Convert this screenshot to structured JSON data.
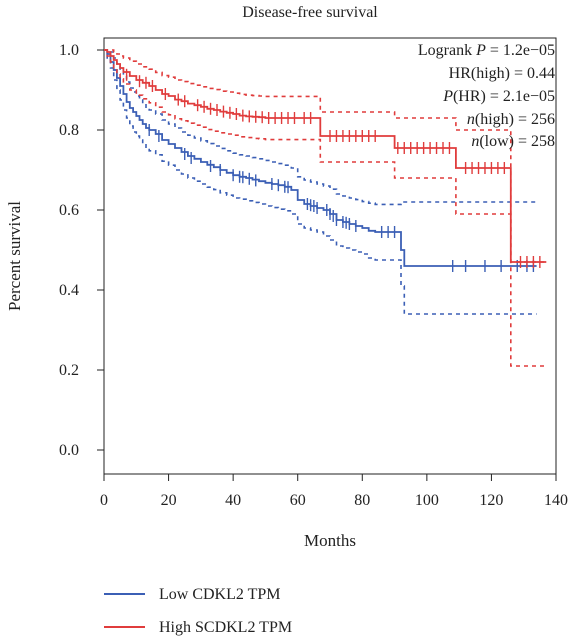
{
  "chart_data": {
    "type": "line",
    "title": "Disease-free survival",
    "xlabel": "Months",
    "ylabel": "Percent survival",
    "xlim": [
      0,
      140
    ],
    "ylim": [
      0,
      1
    ],
    "xticks": [
      "0",
      "20",
      "40",
      "60",
      "80",
      "100",
      "120",
      "140"
    ],
    "yticks": [
      "0.0",
      "0.2",
      "0.4",
      "0.6",
      "0.8",
      "1.0"
    ],
    "grid": false,
    "legend_position": "bottom-left",
    "stats": {
      "logrank_prefix": "Logrank ",
      "logrank_p_symbol": "P",
      "logrank_value": " = 1.2e−05",
      "hr_label": "HR(high) = 0.44",
      "phr_symbol": "P",
      "phr_value": "(HR) = 2.1e−05",
      "n_symbol": "n",
      "n_high_value": "(high) = 256",
      "n_low_value": "(low) = 258"
    },
    "series": [
      {
        "name": "Low CDKL2 TPM",
        "color": "#3b5fb5",
        "x": [
          0,
          1,
          2,
          3,
          4,
          5,
          6,
          7,
          8,
          9,
          10,
          11,
          12,
          13,
          14,
          16,
          18,
          20,
          22,
          24,
          26,
          28,
          30,
          32,
          34,
          36,
          38,
          40,
          42,
          44,
          46,
          48,
          50,
          52,
          54,
          56,
          58,
          60,
          62,
          64,
          66,
          68,
          70,
          72,
          74,
          76,
          78,
          80,
          82,
          84,
          86,
          88,
          90,
          92,
          93,
          100,
          110,
          120,
          130,
          134
        ],
        "y": [
          1.0,
          0.99,
          0.97,
          0.95,
          0.93,
          0.91,
          0.89,
          0.87,
          0.855,
          0.845,
          0.835,
          0.825,
          0.815,
          0.805,
          0.8,
          0.79,
          0.775,
          0.765,
          0.755,
          0.745,
          0.735,
          0.728,
          0.72,
          0.713,
          0.707,
          0.7,
          0.693,
          0.687,
          0.683,
          0.68,
          0.676,
          0.672,
          0.668,
          0.665,
          0.662,
          0.658,
          0.65,
          0.625,
          0.615,
          0.61,
          0.605,
          0.6,
          0.59,
          0.575,
          0.57,
          0.565,
          0.56,
          0.555,
          0.548,
          0.545,
          0.545,
          0.545,
          0.545,
          0.5,
          0.46,
          0.46,
          0.46,
          0.46,
          0.46,
          0.46
        ],
        "ci_upper": [
          1.0,
          1.0,
          0.995,
          0.98,
          0.965,
          0.95,
          0.935,
          0.92,
          0.905,
          0.895,
          0.885,
          0.875,
          0.865,
          0.857,
          0.85,
          0.84,
          0.825,
          0.815,
          0.805,
          0.795,
          0.787,
          0.78,
          0.773,
          0.766,
          0.76,
          0.754,
          0.748,
          0.742,
          0.738,
          0.735,
          0.731,
          0.728,
          0.724,
          0.72,
          0.716,
          0.712,
          0.705,
          0.683,
          0.675,
          0.67,
          0.665,
          0.66,
          0.652,
          0.64,
          0.635,
          0.63,
          0.626,
          0.621,
          0.617,
          0.614,
          0.614,
          0.614,
          0.614,
          0.62,
          0.62,
          0.62,
          0.62,
          0.62,
          0.62,
          0.62
        ],
        "ci_lower": [
          1.0,
          0.975,
          0.955,
          0.925,
          0.9,
          0.875,
          0.85,
          0.83,
          0.81,
          0.795,
          0.785,
          0.775,
          0.763,
          0.753,
          0.748,
          0.738,
          0.722,
          0.712,
          0.7,
          0.69,
          0.68,
          0.672,
          0.665,
          0.657,
          0.651,
          0.643,
          0.637,
          0.63,
          0.627,
          0.623,
          0.619,
          0.615,
          0.61,
          0.606,
          0.602,
          0.598,
          0.59,
          0.565,
          0.555,
          0.55,
          0.545,
          0.535,
          0.525,
          0.51,
          0.505,
          0.5,
          0.495,
          0.49,
          0.48,
          0.475,
          0.475,
          0.475,
          0.475,
          0.41,
          0.34,
          0.34,
          0.34,
          0.34,
          0.34,
          0.34
        ],
        "censor_x": [
          14,
          17,
          25,
          27,
          33,
          36,
          40,
          42,
          43,
          45,
          47,
          52,
          54,
          56,
          57,
          63,
          64,
          65,
          66,
          69,
          70,
          71,
          72,
          74,
          75,
          76,
          78,
          86,
          88,
          90,
          108,
          112,
          118,
          123,
          128,
          131,
          133
        ],
        "censor_y": [
          0.8,
          0.785,
          0.74,
          0.73,
          0.71,
          0.7,
          0.687,
          0.683,
          0.682,
          0.678,
          0.674,
          0.665,
          0.662,
          0.658,
          0.657,
          0.615,
          0.612,
          0.61,
          0.605,
          0.6,
          0.59,
          0.585,
          0.575,
          0.57,
          0.568,
          0.565,
          0.56,
          0.545,
          0.545,
          0.545,
          0.46,
          0.46,
          0.46,
          0.46,
          0.46,
          0.46,
          0.46
        ]
      },
      {
        "name": "High SCDKL2 TPM",
        "color": "#e03c3c",
        "x": [
          0,
          1,
          2,
          3,
          4,
          5,
          6,
          8,
          10,
          12,
          14,
          16,
          18,
          20,
          22,
          24,
          26,
          28,
          30,
          32,
          34,
          36,
          38,
          40,
          42,
          44,
          46,
          48,
          50,
          60,
          66,
          67,
          70,
          80,
          88,
          90,
          100,
          108,
          109,
          120,
          125,
          126,
          130,
          137
        ],
        "y": [
          1.0,
          0.995,
          0.985,
          0.975,
          0.965,
          0.955,
          0.945,
          0.935,
          0.925,
          0.918,
          0.91,
          0.9,
          0.89,
          0.885,
          0.876,
          0.872,
          0.866,
          0.862,
          0.858,
          0.853,
          0.85,
          0.846,
          0.843,
          0.84,
          0.836,
          0.834,
          0.833,
          0.832,
          0.83,
          0.83,
          0.83,
          0.785,
          0.785,
          0.785,
          0.785,
          0.755,
          0.755,
          0.755,
          0.705,
          0.705,
          0.705,
          0.47,
          0.47,
          0.47
        ],
        "ci_upper": [
          1.0,
          1.0,
          1.0,
          0.995,
          0.99,
          0.985,
          0.98,
          0.972,
          0.965,
          0.958,
          0.952,
          0.944,
          0.936,
          0.932,
          0.925,
          0.921,
          0.916,
          0.912,
          0.908,
          0.904,
          0.901,
          0.897,
          0.895,
          0.892,
          0.889,
          0.887,
          0.886,
          0.885,
          0.884,
          0.884,
          0.884,
          0.845,
          0.845,
          0.845,
          0.845,
          0.83,
          0.83,
          0.83,
          0.8,
          0.8,
          0.8,
          0.47,
          0.47,
          0.47
        ],
        "ci_lower": [
          1.0,
          0.985,
          0.97,
          0.955,
          0.94,
          0.928,
          0.915,
          0.9,
          0.887,
          0.878,
          0.868,
          0.857,
          0.845,
          0.838,
          0.828,
          0.823,
          0.817,
          0.812,
          0.807,
          0.801,
          0.797,
          0.793,
          0.79,
          0.787,
          0.783,
          0.781,
          0.779,
          0.778,
          0.776,
          0.776,
          0.776,
          0.72,
          0.72,
          0.72,
          0.72,
          0.68,
          0.68,
          0.68,
          0.59,
          0.59,
          0.59,
          0.21,
          0.21,
          0.21
        ],
        "censor_x": [
          7,
          11,
          13,
          15,
          19,
          23,
          25,
          29,
          31,
          33,
          35,
          37,
          39,
          41,
          43,
          45,
          47,
          49,
          51,
          53,
          55,
          57,
          59,
          62,
          64,
          70,
          72,
          74,
          76,
          78,
          80,
          82,
          84,
          91,
          93,
          95,
          97,
          99,
          101,
          103,
          105,
          107,
          112,
          114,
          116,
          118,
          120,
          122,
          124,
          129,
          131,
          133,
          135
        ],
        "censor_y": [
          0.938,
          0.922,
          0.918,
          0.91,
          0.89,
          0.876,
          0.872,
          0.862,
          0.858,
          0.853,
          0.85,
          0.846,
          0.843,
          0.84,
          0.836,
          0.834,
          0.833,
          0.832,
          0.83,
          0.83,
          0.83,
          0.83,
          0.83,
          0.83,
          0.83,
          0.785,
          0.785,
          0.785,
          0.785,
          0.785,
          0.785,
          0.785,
          0.785,
          0.755,
          0.755,
          0.755,
          0.755,
          0.755,
          0.755,
          0.755,
          0.755,
          0.755,
          0.705,
          0.705,
          0.705,
          0.705,
          0.705,
          0.705,
          0.705,
          0.47,
          0.47,
          0.47,
          0.47
        ]
      }
    ]
  }
}
